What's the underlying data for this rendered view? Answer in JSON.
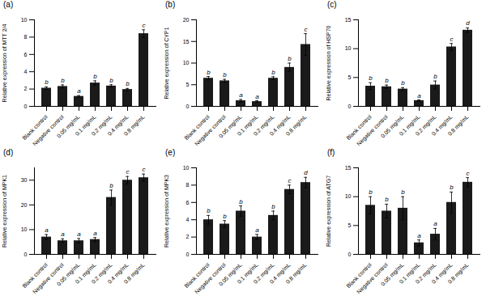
{
  "chart_data": [
    {
      "type": "bar",
      "title": "(a)",
      "ylabel": "Relative expression of MTT 2/4",
      "categories": [
        "Blank control",
        "Negative control",
        "0.05 mg/mL",
        "0.1 mg/mL",
        "0.2 mg/mL",
        "0.4 mg/mL",
        "0.8 mg/mL"
      ],
      "values": [
        2.1,
        2.3,
        1.15,
        2.7,
        2.35,
        1.95,
        8.4
      ],
      "errors": [
        0.15,
        0.18,
        0.1,
        0.25,
        0.15,
        0.12,
        0.45
      ],
      "letters": [
        "b",
        "b",
        "a",
        "b",
        "b",
        "b",
        "c"
      ],
      "color": "#1a1a1a",
      "ylim": [
        0,
        10
      ],
      "yticks": [
        0,
        2,
        4,
        6,
        8,
        10
      ]
    },
    {
      "type": "bar",
      "title": "(b)",
      "ylabel": "Relative expression of CYP1",
      "categories": [
        "Blank control",
        "Negative control",
        "0.05 mg/mL",
        "0.1 mg/mL",
        "0.2 mg/mL",
        "0.4 mg/mL",
        "0.8 mg/mL"
      ],
      "values": [
        6.5,
        5.9,
        1.3,
        1.1,
        6.5,
        9.0,
        14.3
      ],
      "errors": [
        0.4,
        0.35,
        0.3,
        0.2,
        0.35,
        1.0,
        2.5
      ],
      "letters": [
        "b",
        "b",
        "a",
        "a",
        "b",
        "b",
        "c"
      ],
      "color": "#1a1a1a",
      "ylim": [
        0,
        20
      ],
      "yticks": [
        0,
        5,
        10,
        15,
        20
      ]
    },
    {
      "type": "bar",
      "title": "(c)",
      "ylabel": "Relative expression of HSP70",
      "categories": [
        "Blank control",
        "Negative control",
        "0.05 mg/mL",
        "0.1 mg/mL",
        "0.2 mg/mL",
        "0.4 mg/mL",
        "0.8 mg/mL"
      ],
      "values": [
        3.5,
        3.4,
        3.0,
        1.0,
        3.7,
        10.3,
        13.2
      ],
      "errors": [
        0.6,
        0.3,
        0.25,
        0.12,
        0.7,
        0.6,
        0.4
      ],
      "letters": [
        "b",
        "b",
        "b",
        "a",
        "b",
        "c",
        "d"
      ],
      "color": "#1a1a1a",
      "ylim": [
        0,
        15
      ],
      "yticks": [
        0,
        5,
        10,
        15
      ]
    },
    {
      "type": "bar",
      "title": "(d)",
      "ylabel": "Relative expression of MPK1",
      "categories": [
        "Blank control",
        "Negative control",
        "0.05 mg/mL",
        "0.1 mg/mL",
        "0.2 mg/mL",
        "0.4 mg/mL",
        "0.8 mg/mL"
      ],
      "values": [
        7.0,
        5.5,
        5.5,
        6.0,
        23.0,
        30.0,
        31.0
      ],
      "errors": [
        1.0,
        0.8,
        0.9,
        0.8,
        3.0,
        1.5,
        1.5
      ],
      "letters": [
        "a",
        "a",
        "a",
        "a",
        "b",
        "c",
        "c"
      ],
      "color": "#1a1a1a",
      "ylim": [
        0,
        35
      ],
      "yticks": [
        0,
        10,
        20,
        30
      ]
    },
    {
      "type": "bar",
      "title": "(e)",
      "ylabel": "Relative expression of MPK3",
      "categories": [
        "Blank control",
        "Negative control",
        "0.05 mg/mL",
        "0.1 mg/mL",
        "0.2 mg/mL",
        "0.4 mg/mL",
        "0.8 mg/mL"
      ],
      "values": [
        4.0,
        3.5,
        5.0,
        2.0,
        4.5,
        7.5,
        8.3
      ],
      "errors": [
        0.5,
        0.4,
        0.6,
        0.3,
        0.5,
        0.5,
        0.6
      ],
      "letters": [
        "b",
        "b",
        "b",
        "a",
        "b",
        "c",
        "d"
      ],
      "color": "#1a1a1a",
      "ylim": [
        0,
        10
      ],
      "yticks": [
        0,
        2,
        4,
        6,
        8,
        10
      ]
    },
    {
      "type": "bar",
      "title": "(f)",
      "ylabel": "Relative expression of ATG7",
      "categories": [
        "Blank control",
        "Negative control",
        "0.05 mg/mL",
        "0.1 mg/mL",
        "0.2 mg/mL",
        "0.4 mg/mL",
        "0.8 mg/mL"
      ],
      "values": [
        8.5,
        7.5,
        8.0,
        2.0,
        3.5,
        9.0,
        12.5
      ],
      "errors": [
        1.5,
        1.2,
        2.0,
        0.5,
        1.0,
        1.8,
        0.8
      ],
      "letters": [
        "b",
        "b",
        "b",
        "a",
        "a",
        "b",
        "c"
      ],
      "color": "#1a1a1a",
      "ylim": [
        0,
        15
      ],
      "yticks": [
        0,
        5,
        10,
        15
      ]
    }
  ]
}
